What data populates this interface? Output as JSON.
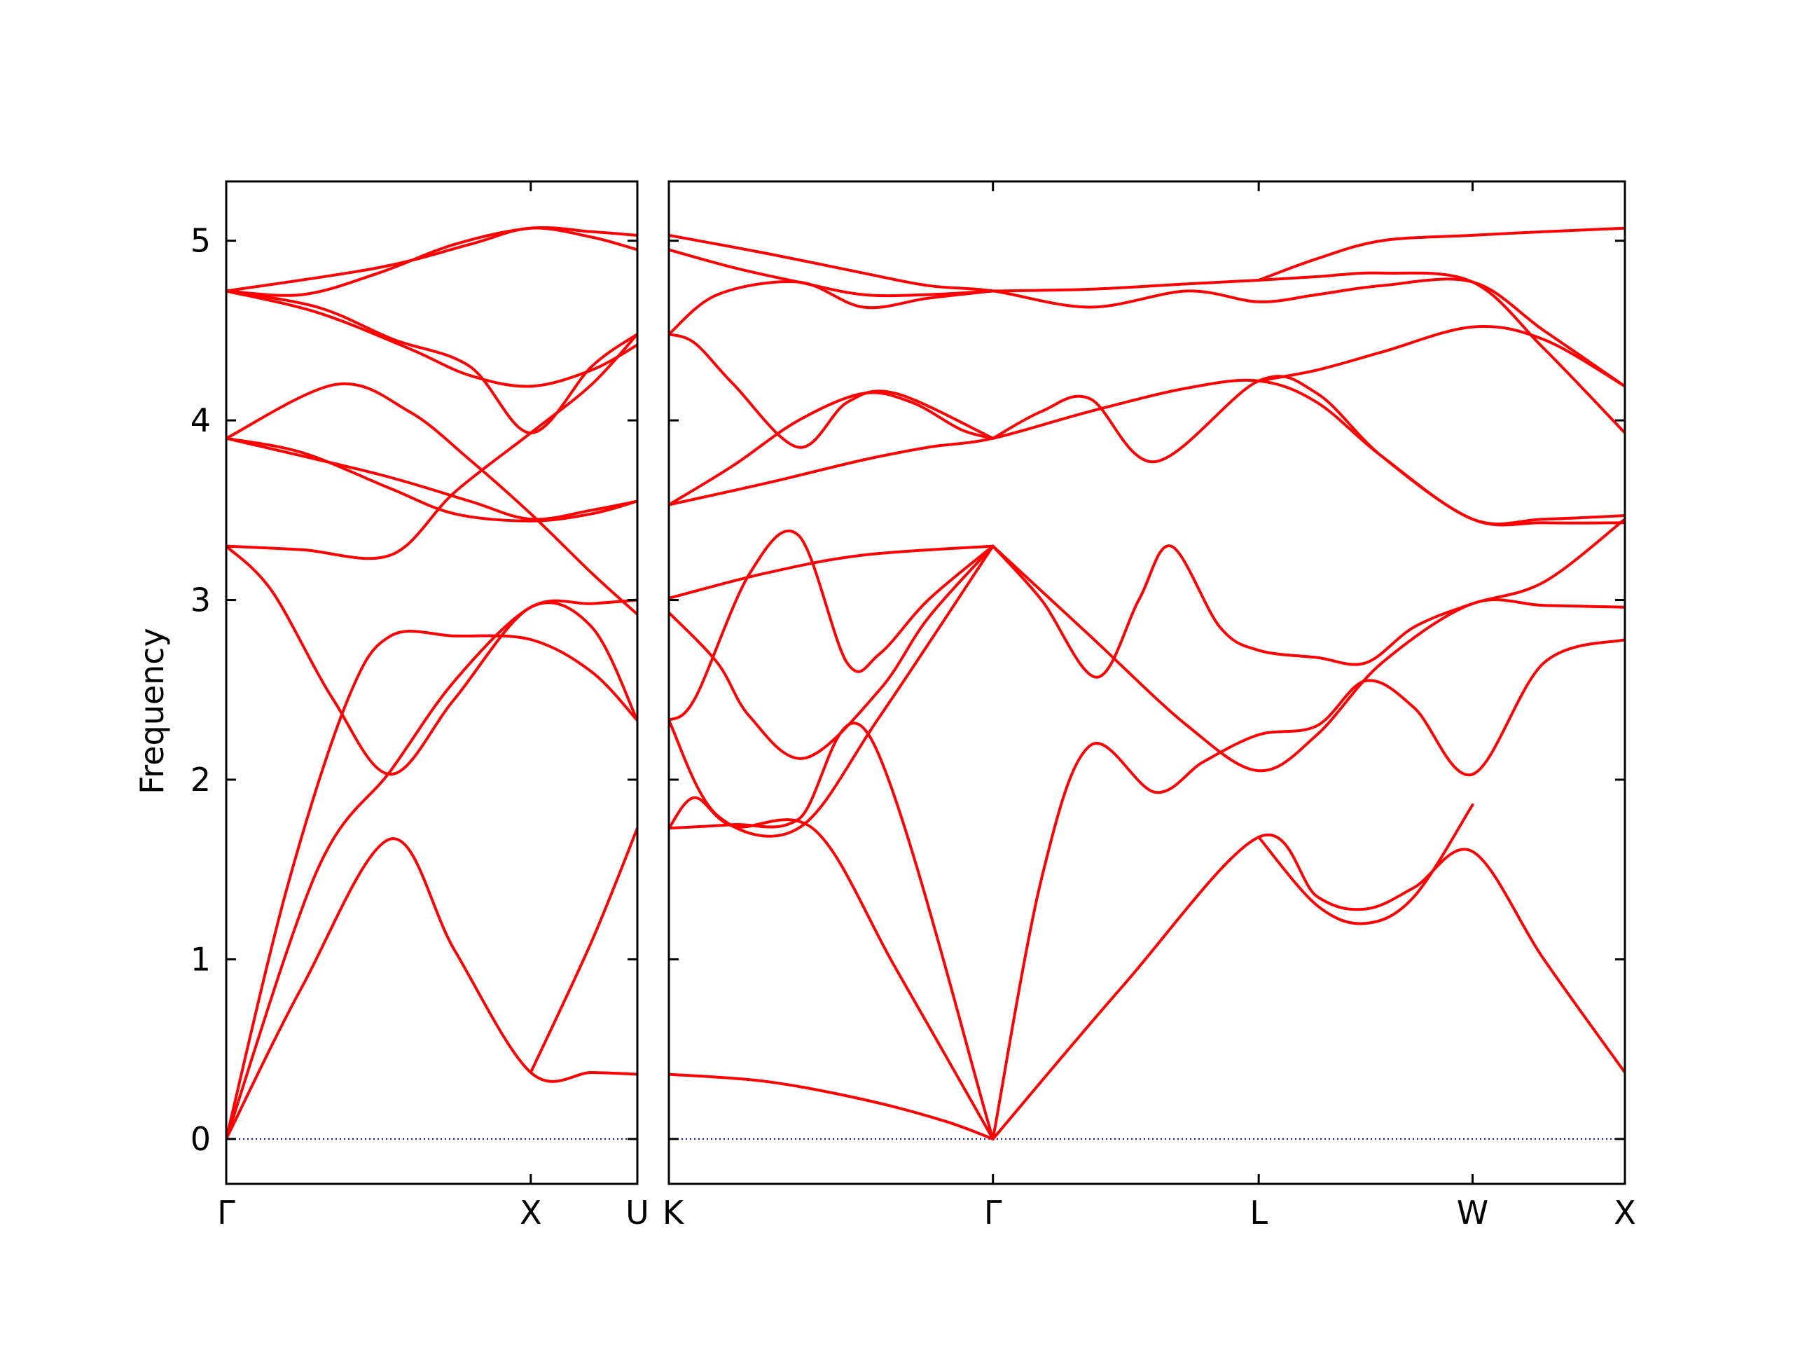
{
  "chart_data": {
    "type": "line",
    "title": "",
    "xlabel": "",
    "ylabel": "Frequency",
    "ylim": [
      -0.25,
      5.33
    ],
    "yticks": [
      0,
      1,
      2,
      3,
      4,
      5
    ],
    "grid": false,
    "legend": "none",
    "colors": {
      "bands": "#ff0000",
      "zero_line": "#0000bb"
    },
    "panels": [
      {
        "name": "Γ–X–U",
        "x_range": [
          0,
          1.35
        ],
        "ticks": [
          {
            "x": 0,
            "label": "Γ"
          },
          {
            "x": 1.0,
            "label": "X"
          },
          {
            "x": 1.35,
            "label": "U"
          }
        ],
        "bands": [
          {
            "x": [
              0,
              0.25,
              0.54,
              0.75,
              1.0,
              1.2,
              1.35
            ],
            "y": [
              0,
              0.85,
              1.67,
              1.05,
              0.37,
              0.37,
              0.36
            ]
          },
          {
            "x": [
              0,
              0.3,
              0.54,
              0.75,
              1.0,
              1.2,
              1.35
            ],
            "y": [
              0,
              1.5,
              2.05,
              2.55,
              2.96,
              2.98,
              3.0
            ]
          },
          {
            "x": [
              0,
              0.2,
              0.4,
              0.54,
              0.75,
              1.0,
              1.2,
              1.35
            ],
            "y": [
              0,
              1.4,
              2.45,
              2.8,
              2.8,
              2.78,
              2.6,
              2.33
            ]
          },
          {
            "x": [
              0,
              0.15,
              0.35,
              0.54,
              0.75,
              1.0,
              1.2,
              1.35
            ],
            "y": [
              3.3,
              3.05,
              2.45,
              2.03,
              2.45,
              2.96,
              2.85,
              2.33
            ]
          },
          {
            "x": [
              0,
              0.25,
              0.54,
              0.75,
              1.0,
              1.2,
              1.35
            ],
            "y": [
              3.3,
              3.28,
              3.25,
              3.6,
              3.93,
              4.2,
              4.48
            ]
          },
          {
            "x": [
              0,
              0.25,
              0.54,
              0.75,
              1.0,
              1.2,
              1.35
            ],
            "y": [
              3.9,
              3.82,
              3.62,
              3.48,
              3.44,
              3.48,
              3.55
            ]
          },
          {
            "x": [
              0,
              0.36,
              0.6,
              0.8,
              1.0,
              1.2,
              1.35
            ],
            "y": [
              3.9,
              4.2,
              4.05,
              3.78,
              3.48,
              3.15,
              2.92
            ]
          },
          {
            "x": [
              0,
              0.3,
              0.6,
              0.8,
              1.0,
              1.2,
              1.35
            ],
            "y": [
              4.72,
              4.6,
              4.4,
              4.25,
              4.19,
              4.28,
              4.42
            ]
          },
          {
            "x": [
              0,
              0.25,
              0.5,
              0.75,
              1.0,
              1.2,
              1.35
            ],
            "y": [
              4.72,
              4.7,
              4.82,
              4.98,
              5.07,
              5.05,
              5.03
            ]
          },
          {
            "x": [
              0,
              0.3,
              0.55,
              0.8,
              1.0,
              1.2,
              1.35
            ],
            "y": [
              4.72,
              4.63,
              4.45,
              4.3,
              3.93,
              4.3,
              4.48
            ]
          },
          {
            "x": [
              0,
              0.5,
              0.8,
              1.0,
              1.2,
              1.35
            ],
            "y": [
              3.9,
              3.7,
              3.55,
              3.45,
              3.5,
              3.55
            ]
          },
          {
            "x": [
              0,
              0.5,
              0.8,
              1.0,
              1.2,
              1.35
            ],
            "y": [
              4.72,
              4.85,
              4.98,
              5.07,
              5.02,
              4.95
            ]
          },
          {
            "x": [
              1.0,
              1.2,
              1.35
            ],
            "y": [
              0.37,
              1.1,
              1.73
            ]
          }
        ]
      },
      {
        "name": "K–Γ–L–W–X",
        "x_range": [
          0,
          2.95
        ],
        "ticks": [
          {
            "x": 0,
            "label": "K"
          },
          {
            "x": 1.0,
            "label": "Γ"
          },
          {
            "x": 1.82,
            "label": "L"
          },
          {
            "x": 2.48,
            "label": "W"
          },
          {
            "x": 2.95,
            "label": "X"
          }
        ],
        "bands": [
          {
            "x": [
              0,
              0.3,
              0.6,
              0.85,
              1.0
            ],
            "y": [
              0.36,
              0.32,
              0.22,
              0.1,
              0
            ]
          },
          {
            "x": [
              0,
              0.08,
              0.2,
              0.45,
              0.7,
              1.0
            ],
            "y": [
              1.73,
              1.9,
              1.74,
              1.72,
              0.95,
              0
            ]
          },
          {
            "x": [
              0,
              0.2,
              0.4,
              0.62,
              1.0
            ],
            "y": [
              1.73,
              1.75,
              1.78,
              2.24,
              0
            ]
          },
          {
            "x": [
              1.0,
              1.15,
              1.3,
              1.5,
              1.65,
              1.82,
              2.0,
              2.15,
              2.3,
              2.48,
              2.7,
              2.95
            ],
            "y": [
              0,
              1.45,
              2.19,
              1.93,
              2.1,
              2.25,
              2.3,
              2.55,
              2.4,
              2.03,
              2.65,
              2.78
            ]
          },
          {
            "x": [
              1.0,
              1.4,
              1.82,
              2.0,
              2.15,
              2.3,
              2.48,
              2.7,
              2.95
            ],
            "y": [
              0,
              0.85,
              1.68,
              1.35,
              1.28,
              1.4,
              1.6,
              1.0,
              0.37
            ]
          },
          {
            "x": [
              1.82,
              2.0,
              2.15,
              2.3,
              2.48
            ],
            "y": [
              1.68,
              1.3,
              1.2,
              1.35,
              1.86
            ]
          },
          {
            "x": [
              0,
              0.15,
              0.4,
              0.65,
              1.0
            ],
            "y": [
              2.33,
              1.8,
              1.73,
              2.35,
              3.3
            ]
          },
          {
            "x": [
              0,
              0.15,
              0.25,
              0.42,
              0.65,
              0.8,
              1.0
            ],
            "y": [
              2.93,
              2.65,
              2.35,
              2.12,
              2.5,
              2.9,
              3.3
            ]
          },
          {
            "x": [
              0,
              0.08,
              0.25,
              0.4,
              0.55,
              0.65,
              0.8,
              1.0
            ],
            "y": [
              2.33,
              2.45,
              3.15,
              3.36,
              2.65,
              2.7,
              3.0,
              3.3
            ]
          },
          {
            "x": [
              0,
              0.3,
              0.6,
              1.0
            ],
            "y": [
              3.01,
              3.15,
              3.25,
              3.3
            ]
          },
          {
            "x": [
              1.0,
              1.15,
              1.32,
              1.45,
              1.55,
              1.7,
              1.82,
              2.0,
              2.15,
              2.3,
              2.48,
              2.7,
              2.95
            ],
            "y": [
              3.3,
              3.0,
              2.57,
              3.0,
              3.3,
              2.85,
              2.72,
              2.68,
              2.65,
              2.85,
              2.98,
              3.1,
              3.45
            ]
          },
          {
            "x": [
              1.0,
              1.3,
              1.6,
              1.82,
              2.0,
              2.2,
              2.48,
              2.7,
              2.95
            ],
            "y": [
              3.3,
              2.8,
              2.3,
              2.05,
              2.25,
              2.65,
              2.98,
              2.97,
              2.96
            ]
          },
          {
            "x": [
              0,
              0.3,
              0.6,
              0.8,
              1.0,
              1.3,
              1.6,
              1.82,
              2.0,
              2.2,
              2.48,
              2.7,
              2.95
            ],
            "y": [
              3.53,
              3.65,
              3.78,
              3.85,
              3.9,
              4.05,
              4.18,
              4.22,
              4.1,
              3.8,
              3.45,
              3.45,
              3.47
            ]
          },
          {
            "x": [
              0,
              0.2,
              0.4,
              0.6,
              0.75,
              0.9,
              1.0
            ],
            "y": [
              3.53,
              3.75,
              4.0,
              4.15,
              4.1,
              3.95,
              3.9
            ]
          },
          {
            "x": [
              0,
              0.08,
              0.2,
              0.4,
              0.55,
              0.7,
              1.0
            ],
            "y": [
              4.48,
              4.43,
              4.2,
              3.85,
              4.1,
              4.15,
              3.9
            ]
          },
          {
            "x": [
              1.0,
              1.15,
              1.3,
              1.5,
              1.82,
              2.0,
              2.2,
              2.48,
              2.7,
              2.95
            ],
            "y": [
              3.9,
              4.05,
              4.12,
              3.77,
              4.22,
              4.15,
              3.8,
              3.45,
              3.43,
              3.43
            ]
          },
          {
            "x": [
              1.82,
              2.0,
              2.2,
              2.48,
              2.7,
              2.95
            ],
            "y": [
              4.22,
              4.28,
              4.38,
              4.52,
              4.45,
              4.19
            ]
          },
          {
            "x": [
              0,
              0.15,
              0.4,
              0.6,
              0.8,
              1.0
            ],
            "y": [
              4.48,
              4.7,
              4.77,
              4.63,
              4.68,
              4.72
            ]
          },
          {
            "x": [
              0,
              0.2,
              0.4,
              0.6,
              0.8,
              1.0
            ],
            "y": [
              4.95,
              4.85,
              4.77,
              4.7,
              4.7,
              4.72
            ]
          },
          {
            "x": [
              0,
              0.3,
              0.6,
              0.8,
              1.0,
              1.3,
              1.6,
              1.82,
              2.0,
              2.2,
              2.48,
              2.7,
              2.95
            ],
            "y": [
              5.03,
              4.93,
              4.82,
              4.75,
              4.72,
              4.63,
              4.72,
              4.66,
              4.7,
              4.75,
              4.77,
              4.5,
              4.19
            ]
          },
          {
            "x": [
              1.0,
              1.3,
              1.6,
              1.82,
              2.0,
              2.2,
              2.48,
              2.7,
              2.95
            ],
            "y": [
              4.72,
              4.73,
              4.76,
              4.78,
              4.8,
              4.82,
              4.77,
              4.4,
              3.93
            ]
          },
          {
            "x": [
              1.82,
              2.0,
              2.2,
              2.48,
              2.7,
              2.95
            ],
            "y": [
              4.78,
              4.9,
              5.0,
              5.03,
              5.05,
              5.07
            ]
          }
        ]
      }
    ]
  }
}
